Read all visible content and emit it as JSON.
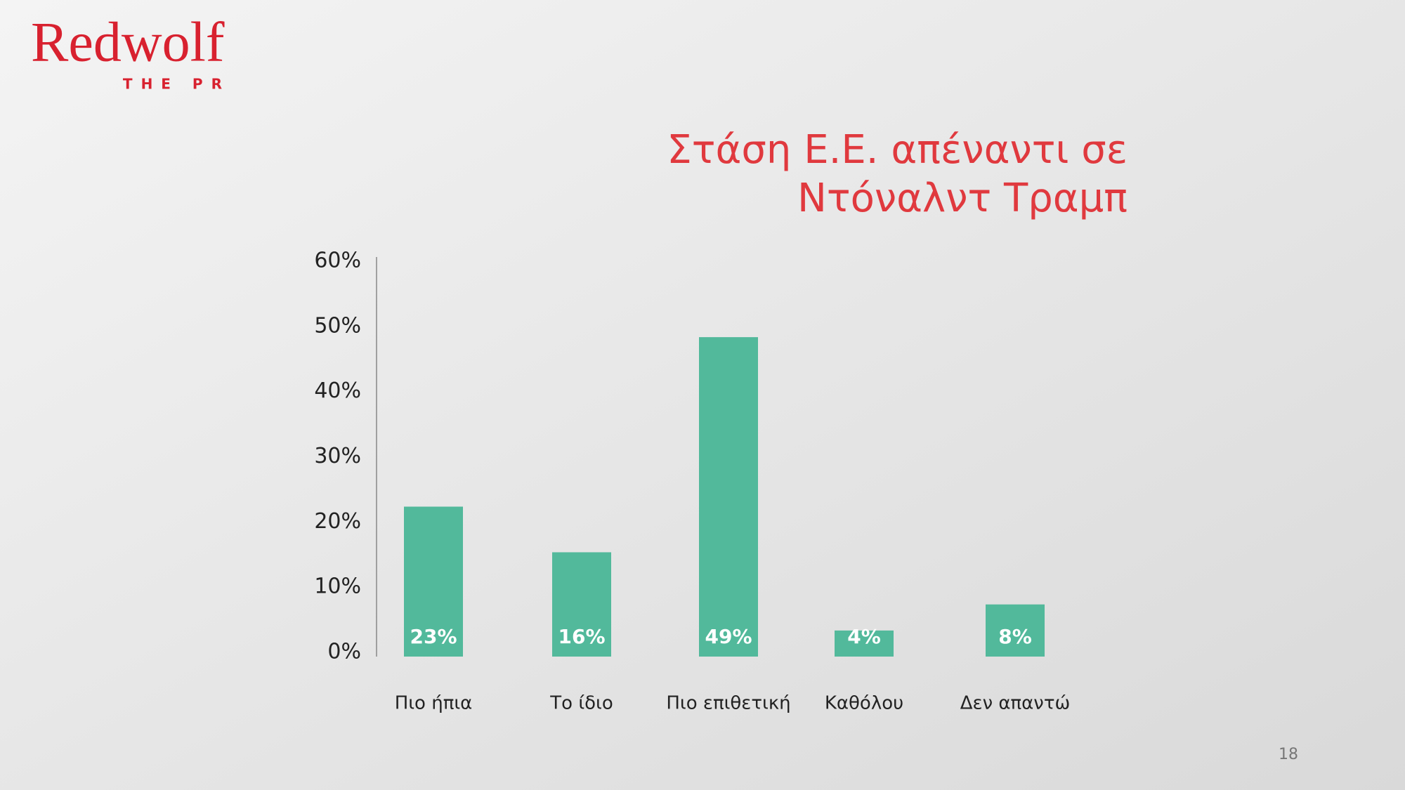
{
  "logo": {
    "name": "Redwolf",
    "tagline": "THE PR"
  },
  "page_number": "18",
  "chart_data": {
    "type": "bar",
    "title": [
      "Στάση Ε.Ε. απέναντι σε",
      "Ντόναλντ Τραμπ"
    ],
    "categories": [
      "Πιο ήπια",
      "Το ίδιο",
      "Πιο επιθετική",
      "Καθόλου",
      "Δεν απαντώ"
    ],
    "values": [
      23,
      16,
      49,
      4,
      8
    ],
    "value_labels": [
      "23%",
      "16%",
      "49%",
      "4%",
      "8%"
    ],
    "color": "#52b99b",
    "ylim": [
      0,
      60
    ],
    "yticks": [
      {
        "value": 0,
        "label": "0%"
      },
      {
        "value": 10,
        "label": "10%"
      },
      {
        "value": 20,
        "label": "20%"
      },
      {
        "value": 30,
        "label": "30%"
      },
      {
        "value": 40,
        "label": "40%"
      },
      {
        "value": 50,
        "label": "50%"
      },
      {
        "value": 60,
        "label": "60%"
      }
    ]
  }
}
